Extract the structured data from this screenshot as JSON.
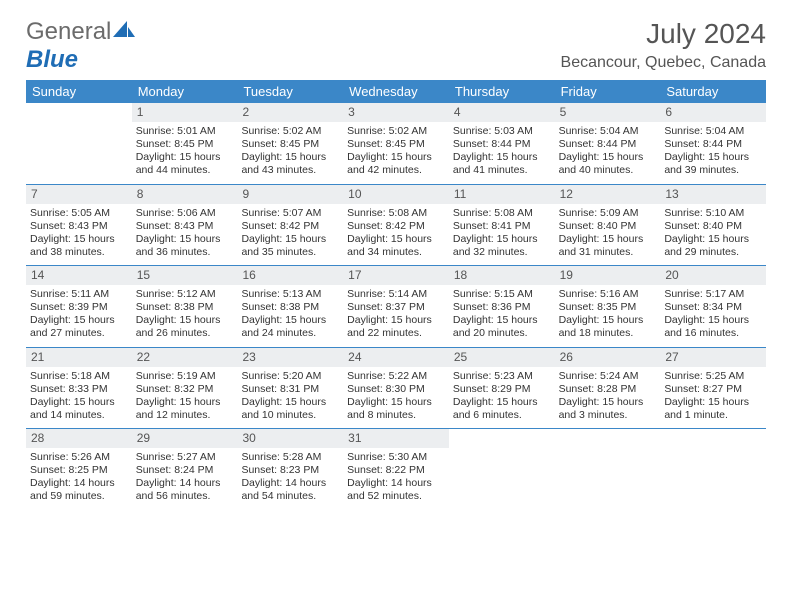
{
  "logo": {
    "text1": "General",
    "text2": "Blue"
  },
  "title": "July 2024",
  "location": "Becancour, Quebec, Canada",
  "colors": {
    "header_bar": "#3b87c8",
    "daynum_bg": "#eceef0",
    "text": "#333333",
    "logo_gray": "#6b6b6b",
    "logo_blue": "#1f6db5"
  },
  "day_names": [
    "Sunday",
    "Monday",
    "Tuesday",
    "Wednesday",
    "Thursday",
    "Friday",
    "Saturday"
  ],
  "weeks": [
    [
      {
        "n": "",
        "sr": "",
        "ss": "",
        "dl": ""
      },
      {
        "n": "1",
        "sr": "Sunrise: 5:01 AM",
        "ss": "Sunset: 8:45 PM",
        "dl": "Daylight: 15 hours and 44 minutes."
      },
      {
        "n": "2",
        "sr": "Sunrise: 5:02 AM",
        "ss": "Sunset: 8:45 PM",
        "dl": "Daylight: 15 hours and 43 minutes."
      },
      {
        "n": "3",
        "sr": "Sunrise: 5:02 AM",
        "ss": "Sunset: 8:45 PM",
        "dl": "Daylight: 15 hours and 42 minutes."
      },
      {
        "n": "4",
        "sr": "Sunrise: 5:03 AM",
        "ss": "Sunset: 8:44 PM",
        "dl": "Daylight: 15 hours and 41 minutes."
      },
      {
        "n": "5",
        "sr": "Sunrise: 5:04 AM",
        "ss": "Sunset: 8:44 PM",
        "dl": "Daylight: 15 hours and 40 minutes."
      },
      {
        "n": "6",
        "sr": "Sunrise: 5:04 AM",
        "ss": "Sunset: 8:44 PM",
        "dl": "Daylight: 15 hours and 39 minutes."
      }
    ],
    [
      {
        "n": "7",
        "sr": "Sunrise: 5:05 AM",
        "ss": "Sunset: 8:43 PM",
        "dl": "Daylight: 15 hours and 38 minutes."
      },
      {
        "n": "8",
        "sr": "Sunrise: 5:06 AM",
        "ss": "Sunset: 8:43 PM",
        "dl": "Daylight: 15 hours and 36 minutes."
      },
      {
        "n": "9",
        "sr": "Sunrise: 5:07 AM",
        "ss": "Sunset: 8:42 PM",
        "dl": "Daylight: 15 hours and 35 minutes."
      },
      {
        "n": "10",
        "sr": "Sunrise: 5:08 AM",
        "ss": "Sunset: 8:42 PM",
        "dl": "Daylight: 15 hours and 34 minutes."
      },
      {
        "n": "11",
        "sr": "Sunrise: 5:08 AM",
        "ss": "Sunset: 8:41 PM",
        "dl": "Daylight: 15 hours and 32 minutes."
      },
      {
        "n": "12",
        "sr": "Sunrise: 5:09 AM",
        "ss": "Sunset: 8:40 PM",
        "dl": "Daylight: 15 hours and 31 minutes."
      },
      {
        "n": "13",
        "sr": "Sunrise: 5:10 AM",
        "ss": "Sunset: 8:40 PM",
        "dl": "Daylight: 15 hours and 29 minutes."
      }
    ],
    [
      {
        "n": "14",
        "sr": "Sunrise: 5:11 AM",
        "ss": "Sunset: 8:39 PM",
        "dl": "Daylight: 15 hours and 27 minutes."
      },
      {
        "n": "15",
        "sr": "Sunrise: 5:12 AM",
        "ss": "Sunset: 8:38 PM",
        "dl": "Daylight: 15 hours and 26 minutes."
      },
      {
        "n": "16",
        "sr": "Sunrise: 5:13 AM",
        "ss": "Sunset: 8:38 PM",
        "dl": "Daylight: 15 hours and 24 minutes."
      },
      {
        "n": "17",
        "sr": "Sunrise: 5:14 AM",
        "ss": "Sunset: 8:37 PM",
        "dl": "Daylight: 15 hours and 22 minutes."
      },
      {
        "n": "18",
        "sr": "Sunrise: 5:15 AM",
        "ss": "Sunset: 8:36 PM",
        "dl": "Daylight: 15 hours and 20 minutes."
      },
      {
        "n": "19",
        "sr": "Sunrise: 5:16 AM",
        "ss": "Sunset: 8:35 PM",
        "dl": "Daylight: 15 hours and 18 minutes."
      },
      {
        "n": "20",
        "sr": "Sunrise: 5:17 AM",
        "ss": "Sunset: 8:34 PM",
        "dl": "Daylight: 15 hours and 16 minutes."
      }
    ],
    [
      {
        "n": "21",
        "sr": "Sunrise: 5:18 AM",
        "ss": "Sunset: 8:33 PM",
        "dl": "Daylight: 15 hours and 14 minutes."
      },
      {
        "n": "22",
        "sr": "Sunrise: 5:19 AM",
        "ss": "Sunset: 8:32 PM",
        "dl": "Daylight: 15 hours and 12 minutes."
      },
      {
        "n": "23",
        "sr": "Sunrise: 5:20 AM",
        "ss": "Sunset: 8:31 PM",
        "dl": "Daylight: 15 hours and 10 minutes."
      },
      {
        "n": "24",
        "sr": "Sunrise: 5:22 AM",
        "ss": "Sunset: 8:30 PM",
        "dl": "Daylight: 15 hours and 8 minutes."
      },
      {
        "n": "25",
        "sr": "Sunrise: 5:23 AM",
        "ss": "Sunset: 8:29 PM",
        "dl": "Daylight: 15 hours and 6 minutes."
      },
      {
        "n": "26",
        "sr": "Sunrise: 5:24 AM",
        "ss": "Sunset: 8:28 PM",
        "dl": "Daylight: 15 hours and 3 minutes."
      },
      {
        "n": "27",
        "sr": "Sunrise: 5:25 AM",
        "ss": "Sunset: 8:27 PM",
        "dl": "Daylight: 15 hours and 1 minute."
      }
    ],
    [
      {
        "n": "28",
        "sr": "Sunrise: 5:26 AM",
        "ss": "Sunset: 8:25 PM",
        "dl": "Daylight: 14 hours and 59 minutes."
      },
      {
        "n": "29",
        "sr": "Sunrise: 5:27 AM",
        "ss": "Sunset: 8:24 PM",
        "dl": "Daylight: 14 hours and 56 minutes."
      },
      {
        "n": "30",
        "sr": "Sunrise: 5:28 AM",
        "ss": "Sunset: 8:23 PM",
        "dl": "Daylight: 14 hours and 54 minutes."
      },
      {
        "n": "31",
        "sr": "Sunrise: 5:30 AM",
        "ss": "Sunset: 8:22 PM",
        "dl": "Daylight: 14 hours and 52 minutes."
      },
      {
        "n": "",
        "sr": "",
        "ss": "",
        "dl": ""
      },
      {
        "n": "",
        "sr": "",
        "ss": "",
        "dl": ""
      },
      {
        "n": "",
        "sr": "",
        "ss": "",
        "dl": ""
      }
    ]
  ]
}
